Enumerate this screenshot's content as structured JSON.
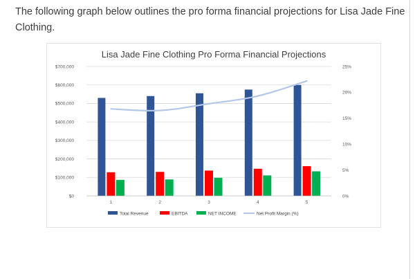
{
  "article": {
    "intro_text": "The following graph below outlines the pro forma financial projections for Lisa Jade Fine Clothing."
  },
  "colors": {
    "total_revenue": "#2f5597",
    "ebitda": "#ff0000",
    "net_income": "#00b050",
    "net_profit_margin": "#b4c7e7",
    "gridline": "#d9d9d9"
  },
  "chart_data": {
    "type": "bar",
    "title": "Lisa Jade Fine Clothing Pro Forma Financial Projections",
    "categories": [
      "1",
      "2",
      "3",
      "4",
      "5"
    ],
    "grid": true,
    "legend_position": "bottom",
    "y_left": {
      "ylim": [
        0,
        700000
      ],
      "ticks": [
        0,
        100000,
        200000,
        300000,
        400000,
        500000,
        600000,
        700000
      ],
      "tick_labels": [
        "$0",
        "$100,000",
        "$200,000",
        "$300,000",
        "$400,000",
        "$500,000",
        "$600,000",
        "$700,000"
      ]
    },
    "y_right": {
      "ylim": [
        0,
        25
      ],
      "ticks": [
        0,
        5,
        10,
        15,
        20,
        25
      ],
      "tick_labels": [
        "0%",
        "5%",
        "10%",
        "15%",
        "20%",
        "25%"
      ]
    },
    "series": [
      {
        "name": "Total Revenue",
        "type": "bar",
        "axis": "left",
        "color_key": "total_revenue",
        "values": [
          530000,
          540000,
          555000,
          575000,
          600000
        ]
      },
      {
        "name": "EBITDA",
        "type": "bar",
        "axis": "left",
        "color_key": "ebitda",
        "values": [
          128000,
          130000,
          137000,
          147000,
          161000
        ]
      },
      {
        "name": "NET INCOME",
        "type": "bar",
        "axis": "left",
        "color_key": "net_income",
        "values": [
          87000,
          89000,
          98000,
          111000,
          133000
        ]
      },
      {
        "name": "Net Profit Margin (%)",
        "type": "line",
        "axis": "right",
        "color_key": "net_profit_margin",
        "values": [
          16.8,
          16.5,
          17.8,
          19.3,
          22.2
        ]
      }
    ]
  }
}
